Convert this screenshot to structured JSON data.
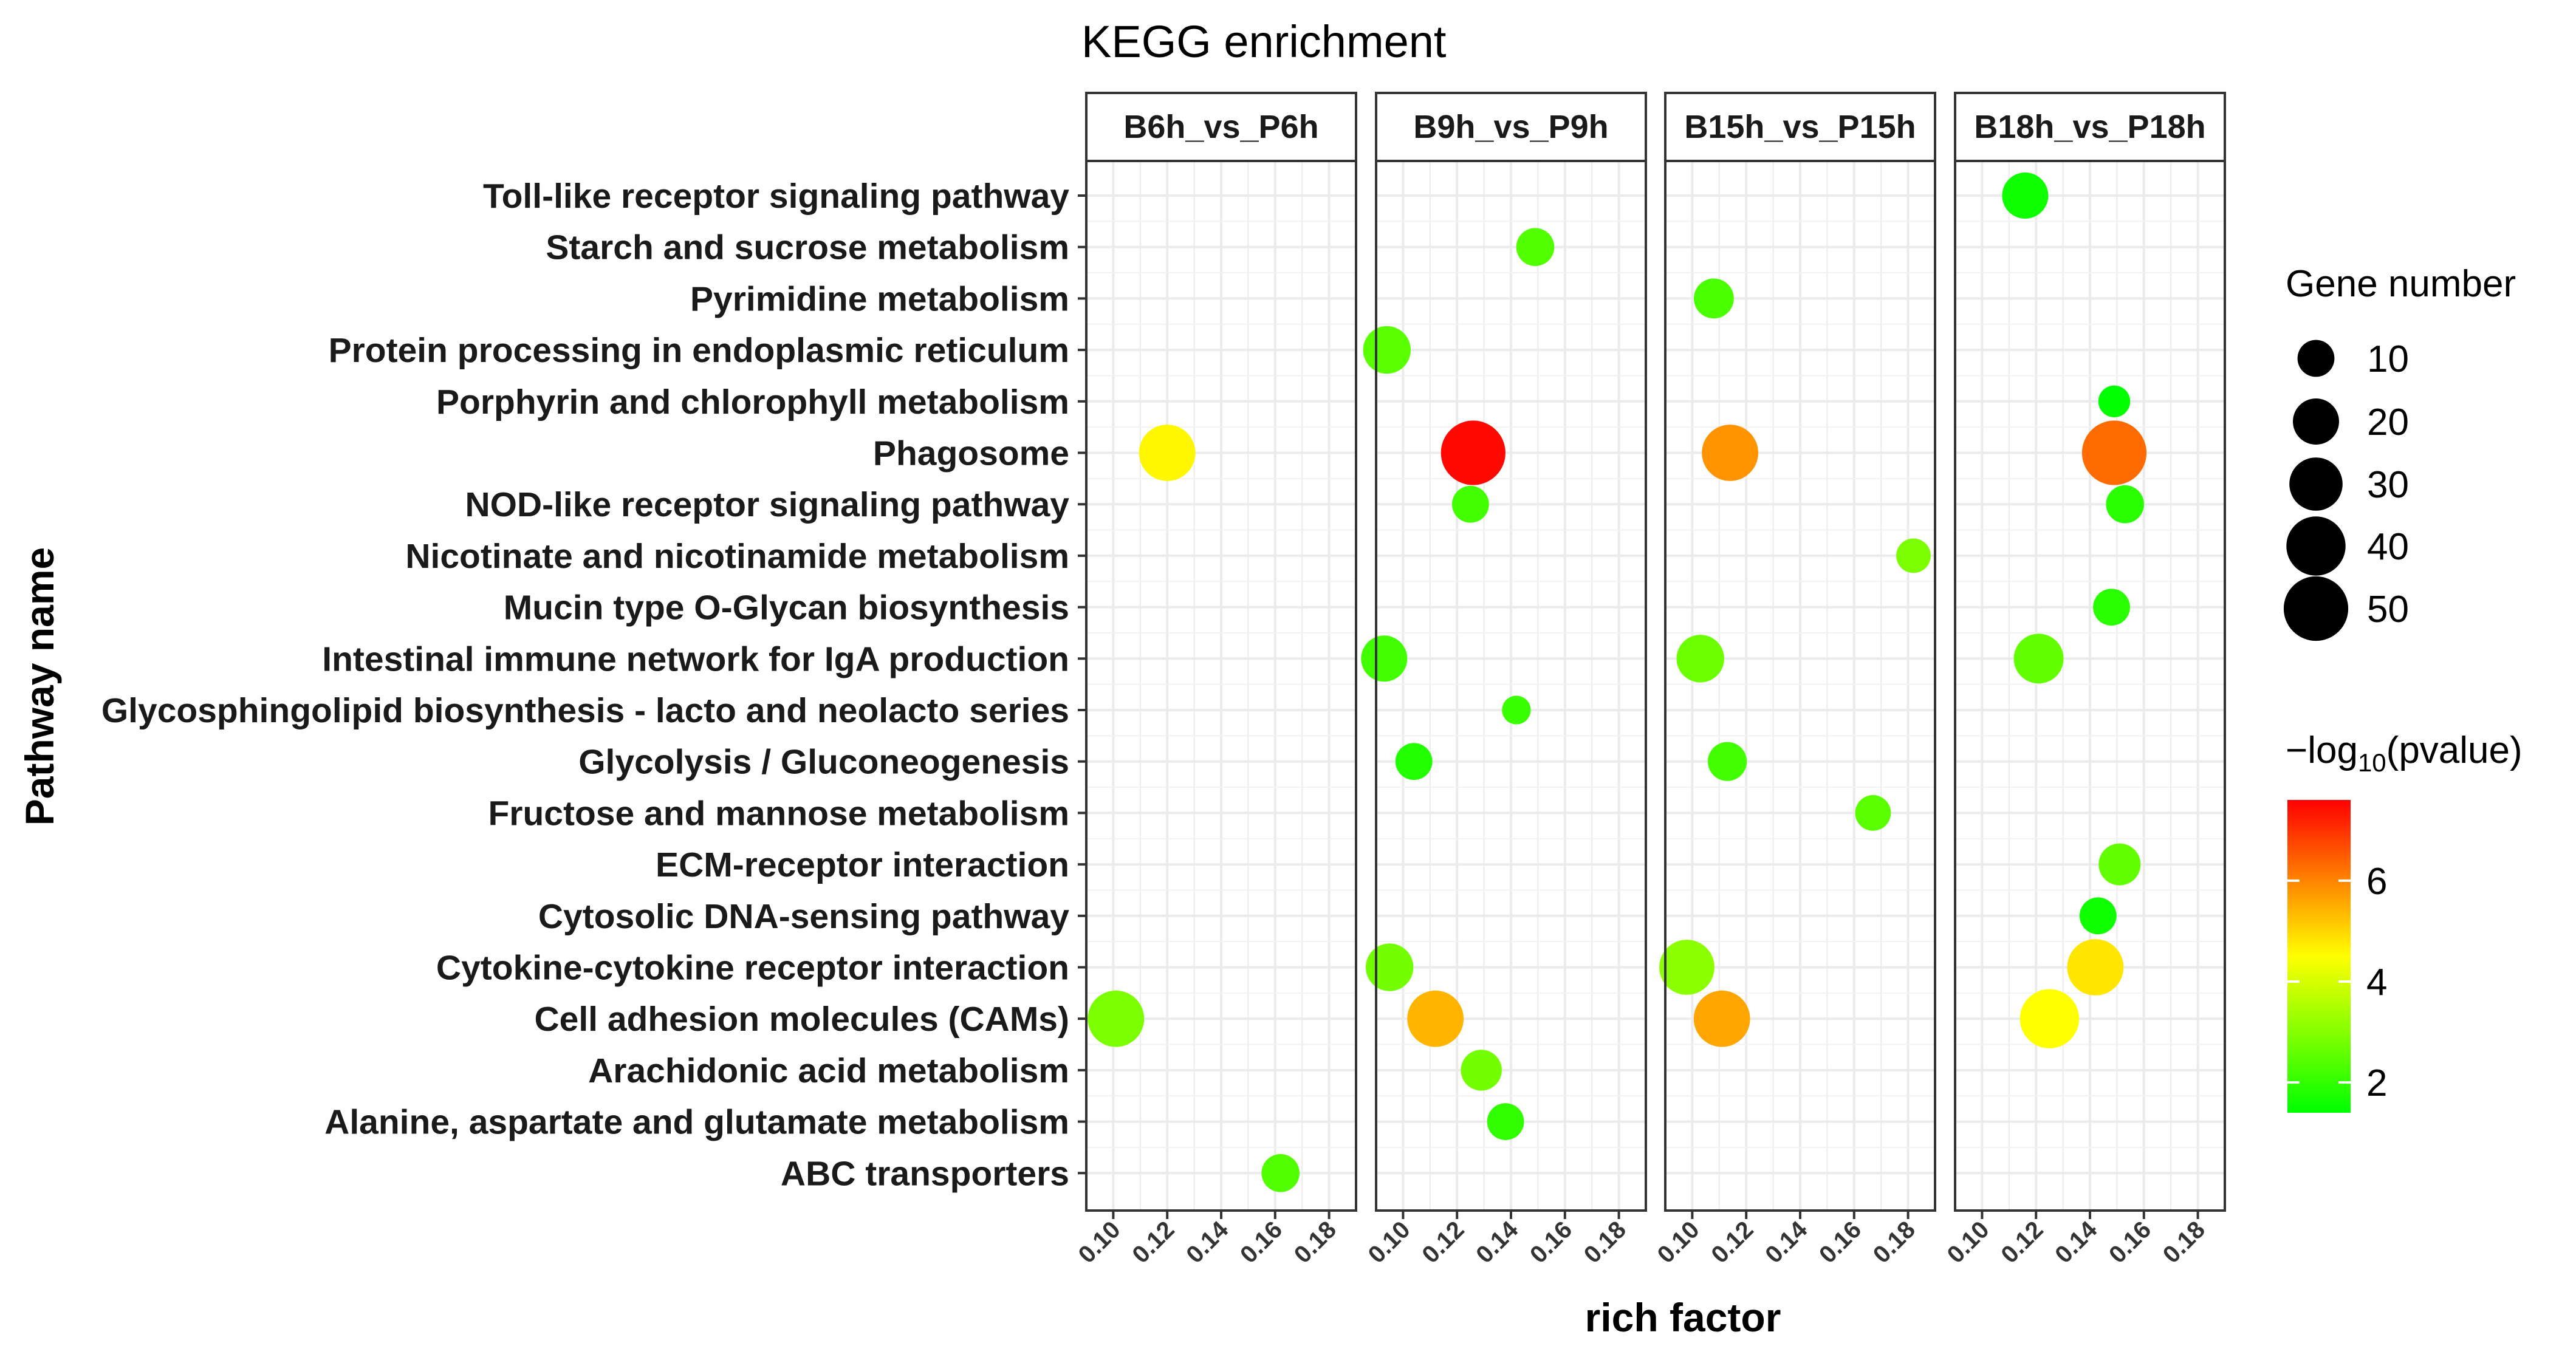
{
  "chart_data": {
    "type": "scatter",
    "title": "KEGG enrichment",
    "xlabel": "rich factor",
    "ylabel": "Pathway name",
    "xlim": [
      0.09,
      0.19
    ],
    "xticks": [
      "0.10",
      "0.12",
      "0.14",
      "0.16",
      "0.18"
    ],
    "xtick_values": [
      0.1,
      0.12,
      0.14,
      0.16,
      0.18
    ],
    "grid": true,
    "pathways": [
      "Toll-like receptor signaling pathway",
      "Starch and sucrose metabolism",
      "Pyrimidine metabolism",
      "Protein processing in endoplasmic reticulum",
      "Porphyrin and chlorophyll metabolism",
      "Phagosome",
      "NOD-like receptor signaling pathway",
      "Nicotinate and nicotinamide metabolism",
      "Mucin type O-Glycan biosynthesis",
      "Intestinal immune network for IgA production",
      "Glycosphingolipid biosynthesis - lacto and neolacto series",
      "Glycolysis / Gluconeogenesis",
      "Fructose and mannose metabolism",
      "ECM-receptor interaction",
      "Cytosolic DNA-sensing pathway",
      "Cytokine-cytokine receptor interaction",
      "Cell adhesion molecules (CAMs)",
      "Arachidonic acid metabolism",
      "Alanine, aspartate and glutamate metabolism",
      "ABC transporters"
    ],
    "panels": [
      {
        "name": "B6h_vs_P6h",
        "points": [
          {
            "pathway": "Phagosome",
            "x": 0.12,
            "genes": 35,
            "neglog10p": 4.6
          },
          {
            "pathway": "Cell adhesion molecules (CAMs)",
            "x": 0.101,
            "genes": 35,
            "neglog10p": 2.9
          },
          {
            "pathway": "ABC transporters",
            "x": 0.162,
            "genes": 11,
            "neglog10p": 2.4
          }
        ]
      },
      {
        "name": "B9h_vs_P9h",
        "points": [
          {
            "pathway": "Starch and sucrose metabolism",
            "x": 0.149,
            "genes": 11,
            "neglog10p": 2.4
          },
          {
            "pathway": "Protein processing in endoplasmic reticulum",
            "x": 0.094,
            "genes": 22,
            "neglog10p": 2.5
          },
          {
            "pathway": "Phagosome",
            "x": 0.126,
            "genes": 50,
            "neglog10p": 7.5
          },
          {
            "pathway": "NOD-like receptor signaling pathway",
            "x": 0.125,
            "genes": 10,
            "neglog10p": 2.2
          },
          {
            "pathway": "Intestinal immune network for IgA production",
            "x": 0.093,
            "genes": 20,
            "neglog10p": 2.2
          },
          {
            "pathway": "Glycosphingolipid biosynthesis - lacto and neolacto series",
            "x": 0.142,
            "genes": 4,
            "neglog10p": 2.1
          },
          {
            "pathway": "Glycolysis / Gluconeogenesis",
            "x": 0.104,
            "genes": 10,
            "neglog10p": 1.8
          },
          {
            "pathway": "Cytokine-cytokine receptor interaction",
            "x": 0.095,
            "genes": 22,
            "neglog10p": 2.8
          },
          {
            "pathway": "Cell adhesion molecules (CAMs)",
            "x": 0.112,
            "genes": 35,
            "neglog10p": 5.4
          },
          {
            "pathway": "Arachidonic acid metabolism",
            "x": 0.129,
            "genes": 14,
            "neglog10p": 2.8
          },
          {
            "pathway": "Alanine, aspartate and glutamate metabolism",
            "x": 0.138,
            "genes": 10,
            "neglog10p": 2.0
          }
        ]
      },
      {
        "name": "B15h_vs_P15h",
        "points": [
          {
            "pathway": "Pyrimidine metabolism",
            "x": 0.108,
            "genes": 13,
            "neglog10p": 2.3
          },
          {
            "pathway": "Phagosome",
            "x": 0.114,
            "genes": 35,
            "neglog10p": 5.8
          },
          {
            "pathway": "Nicotinate and nicotinamide metabolism",
            "x": 0.182,
            "genes": 8,
            "neglog10p": 2.9
          },
          {
            "pathway": "Intestinal immune network for IgA production",
            "x": 0.103,
            "genes": 22,
            "neglog10p": 2.7
          },
          {
            "pathway": "Glycolysis / Gluconeogenesis",
            "x": 0.113,
            "genes": 12,
            "neglog10p": 2.2
          },
          {
            "pathway": "Fructose and mannose metabolism",
            "x": 0.167,
            "genes": 9,
            "neglog10p": 2.5
          },
          {
            "pathway": "Cytokine-cytokine receptor interaction",
            "x": 0.098,
            "genes": 33,
            "neglog10p": 3.1
          },
          {
            "pathway": "Cell adhesion molecules (CAMs)",
            "x": 0.111,
            "genes": 35,
            "neglog10p": 5.6
          }
        ]
      },
      {
        "name": "B18h_vs_P18h",
        "points": [
          {
            "pathway": "Toll-like receptor signaling pathway",
            "x": 0.116,
            "genes": 20,
            "neglog10p": 1.6
          },
          {
            "pathway": "Porphyrin and chlorophyll metabolism",
            "x": 0.149,
            "genes": 6,
            "neglog10p": 1.4
          },
          {
            "pathway": "Phagosome",
            "x": 0.149,
            "genes": 50,
            "neglog10p": 6.3
          },
          {
            "pathway": "NOD-like receptor signaling pathway",
            "x": 0.153,
            "genes": 11,
            "neglog10p": 1.9
          },
          {
            "pathway": "Mucin type O-Glycan biosynthesis",
            "x": 0.148,
            "genes": 10,
            "neglog10p": 1.9
          },
          {
            "pathway": "Intestinal immune network for IgA production",
            "x": 0.121,
            "genes": 25,
            "neglog10p": 2.6
          },
          {
            "pathway": "ECM-receptor interaction",
            "x": 0.151,
            "genes": 15,
            "neglog10p": 2.6
          },
          {
            "pathway": "Cytosolic DNA-sensing pathway",
            "x": 0.143,
            "genes": 10,
            "neglog10p": 1.6
          },
          {
            "pathway": "Cytokine-cytokine receptor interaction",
            "x": 0.142,
            "genes": 35,
            "neglog10p": 4.8
          },
          {
            "pathway": "Cell adhesion molecules (CAMs)",
            "x": 0.125,
            "genes": 40,
            "neglog10p": 4.5
          }
        ]
      }
    ],
    "size_legend": {
      "title": "Gene number",
      "values": [
        10,
        20,
        30,
        40,
        50
      ],
      "labels": [
        "10",
        "20",
        "30",
        "40",
        "50"
      ]
    },
    "color_legend": {
      "title_prefix": "−log",
      "title_subscript": "10",
      "title_suffix": "(pvalue)",
      "low_color": "#00ff00",
      "high_color": "#ff0000",
      "range": [
        1.4,
        7.6
      ],
      "ticks": [
        2,
        4,
        6
      ],
      "tick_labels": [
        "2",
        "4",
        "6"
      ]
    }
  }
}
